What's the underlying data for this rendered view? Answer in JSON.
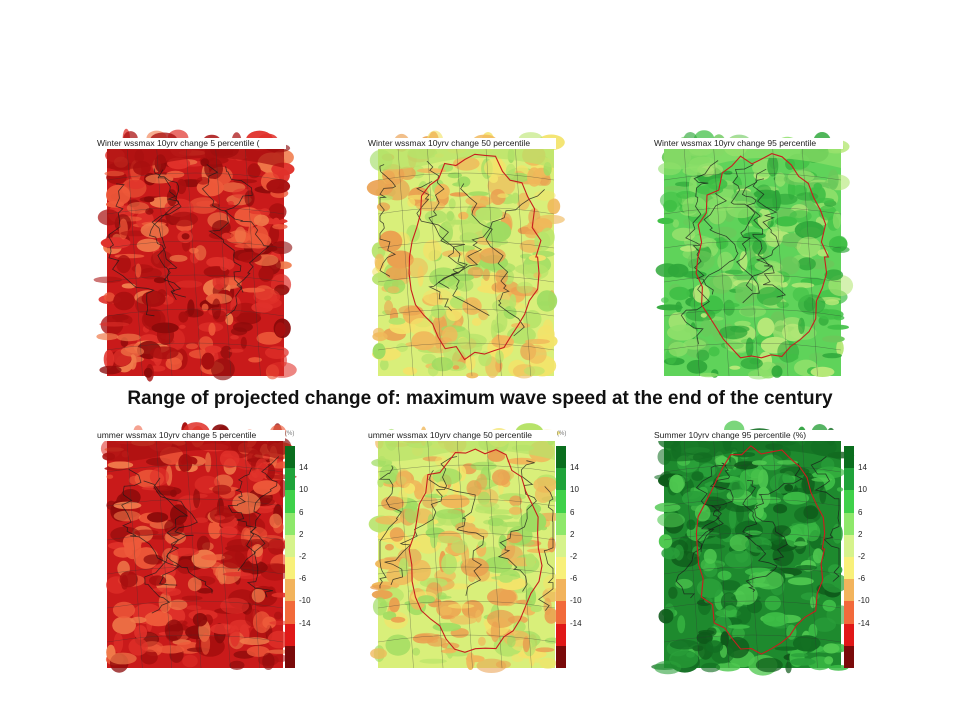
{
  "caption": "Range of  projected change of: maximum wave speed at the end of the century",
  "panels": [
    {
      "id": "p1",
      "title": "Winter wssmax 10yrv change 5 percentile (",
      "palette": "red",
      "has_pct": false
    },
    {
      "id": "p2",
      "title": "Winter wssmax 10yrv change 50 percentile",
      "palette": "yellow",
      "has_pct": false
    },
    {
      "id": "p3",
      "title": "Winter wssmax 10yrv change 95 percentile",
      "palette": "green",
      "has_pct": false
    },
    {
      "id": "p4",
      "title": "ummer wssmax 10yrv change 5 percentile",
      "palette": "red",
      "has_pct": true,
      "pct": "(%)"
    },
    {
      "id": "p5",
      "title": "ummer wssmax 10yrv change 50 percentile",
      "palette": "yellow",
      "has_pct": true,
      "pct": "(%)"
    },
    {
      "id": "p6",
      "title": "Summer 10yrv change 95 percentile (%)",
      "palette": "darkgreen",
      "has_pct": false
    }
  ],
  "colorbar": {
    "labels": [
      "14",
      "10",
      "6",
      "2",
      "-2",
      "-6",
      "-10",
      "-14"
    ],
    "colors": [
      "#0a6e1e",
      "#1fa33a",
      "#3fd14a",
      "#8ee86b",
      "#d6f38c",
      "#f8f07a",
      "#f2b35c",
      "#f26a3b",
      "#e01818",
      "#7a0a0a"
    ]
  },
  "palettes": {
    "red": [
      "#c91a1a",
      "#e0312a",
      "#a80f0f",
      "#ee5a3a",
      "#8c0a0a",
      "#f07a4a"
    ],
    "yellow": [
      "#d9ef7a",
      "#f3e36a",
      "#b7e36a",
      "#f0b85a",
      "#9fdc62",
      "#eaa050"
    ],
    "green": [
      "#5fd35a",
      "#3fbf45",
      "#8fe06a",
      "#2fa83a",
      "#b6e878",
      "#6ac85a"
    ],
    "darkgreen": [
      "#1e8a2e",
      "#2aa03a",
      "#126e22",
      "#3cbc46",
      "#0e5a1a",
      "#4fc850"
    ]
  }
}
